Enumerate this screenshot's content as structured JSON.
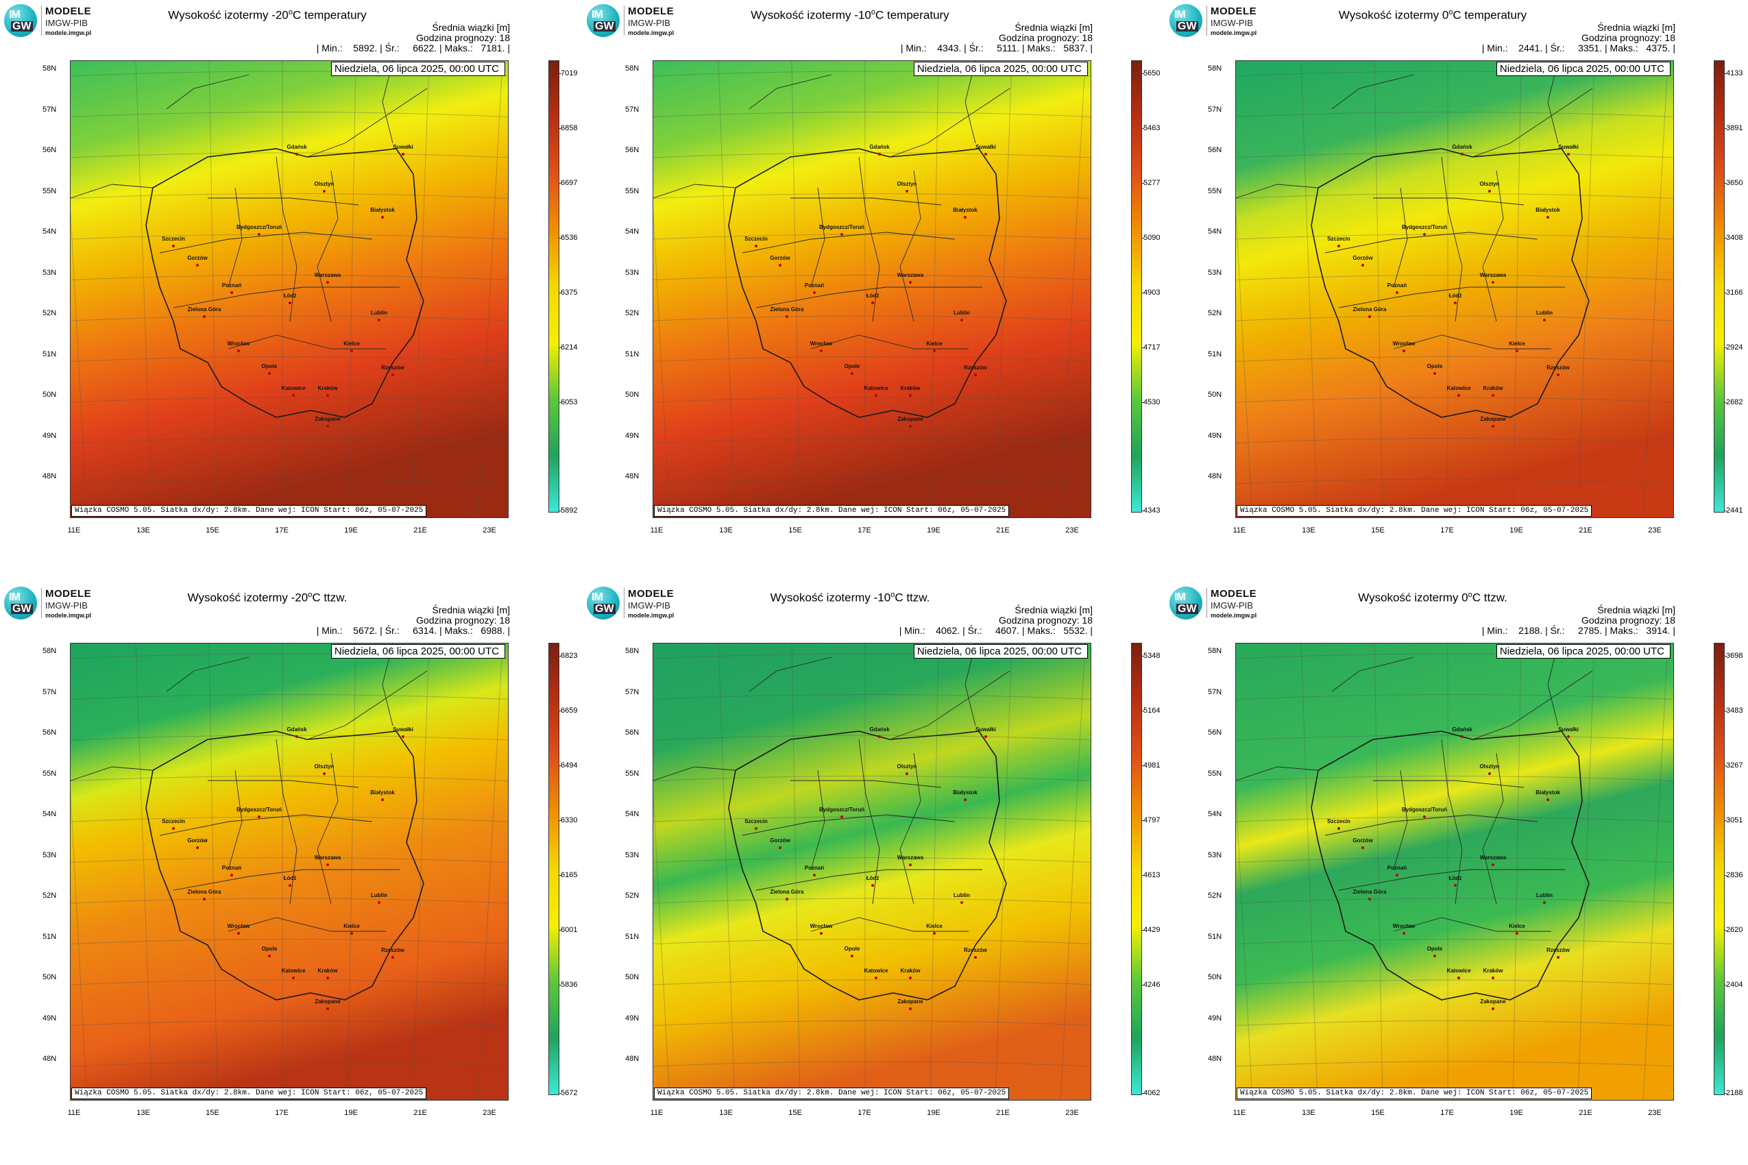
{
  "logo": {
    "badge_top": "IM",
    "badge_bottom": "GW",
    "line1": "MODELE",
    "line2": "IMGW-PIB",
    "line3": "modele.imgw.pl"
  },
  "common": {
    "beam_label": "Średnia wiązki [m]",
    "forecast_hour": "Godzina prognozy: 18",
    "date": "Niedziela, 06 lipca 2025, 00:00 UTC",
    "footer": "Wiązka COSMO 5.05. Siatka dx/dy: 2.8km. Dane wej: ICON Start: 06z, 05-07-2025",
    "lat_labels": [
      "58N",
      "57N",
      "56N",
      "55N",
      "54N",
      "53N",
      "52N",
      "51N",
      "50N",
      "49N",
      "48N"
    ],
    "lon_labels": [
      "11E",
      "13E",
      "15E",
      "17E",
      "19E",
      "21E",
      "23E"
    ]
  },
  "panels": [
    {
      "title_pre": "Wysokość izotermy -20",
      "title_sup": "o",
      "title_post": "C temperatury",
      "stats": "| Min.:    5892. | Śr.:     6622. | Maks.:   7181. |",
      "colorbar": [
        "7019",
        "6858",
        "6697",
        "6536",
        "6375",
        "6214",
        "6053",
        "5892"
      ],
      "pattern": "temp-cold"
    },
    {
      "title_pre": "Wysokość izotermy -10",
      "title_sup": "o",
      "title_post": "C temperatury",
      "stats": "| Min.:    4343. | Śr.:     5111. | Maks.:   5837. |",
      "colorbar": [
        "5650",
        "5463",
        "5277",
        "5090",
        "4903",
        "4717",
        "4530",
        "4343"
      ],
      "pattern": "temp-cold"
    },
    {
      "title_pre": "Wysokość izotermy 0",
      "title_sup": "o",
      "title_post": "C temperatury",
      "stats": "| Min.:    2441. | Śr.:     3351. | Maks.:   4375. |",
      "colorbar": [
        "4133",
        "3891",
        "3650",
        "3408",
        "3166",
        "2924",
        "2682",
        "2441"
      ],
      "pattern": "temp-zero"
    },
    {
      "title_pre": "Wysokość izotermy -20",
      "title_sup": "o",
      "title_post": "C ttzw.",
      "stats": "| Min.:    5672. | Śr.:     6314. | Maks.:   6988. |",
      "colorbar": [
        "6823",
        "6659",
        "6494",
        "6330",
        "6165",
        "6001",
        "5836",
        "5672"
      ],
      "pattern": "wet-cold"
    },
    {
      "title_pre": "Wysokość izotermy -10",
      "title_sup": "o",
      "title_post": "C ttzw.",
      "stats": "| Min.:    4062. | Śr.:     4607. | Maks.:   5532. |",
      "colorbar": [
        "5348",
        "5164",
        "4981",
        "4797",
        "4613",
        "4429",
        "4246",
        "4062"
      ],
      "pattern": "wet-mid"
    },
    {
      "title_pre": "Wysokość izotermy 0",
      "title_sup": "o",
      "title_post": "C ttzw.",
      "stats": "| Min.:    2188. | Śr.:     2785. | Maks.:   3914. |",
      "colorbar": [
        "3698",
        "3483",
        "3267",
        "3051",
        "2836",
        "2620",
        "2404",
        "2188"
      ],
      "pattern": "wet-zero"
    }
  ],
  "cities": [
    "Gdańsk",
    "Suwałki",
    "Olsztyn",
    "Szczecin",
    "Białystok",
    "Bydgoszcz/Toruń",
    "Gorzów",
    "Poznań",
    "Warszawa",
    "Łódź",
    "Zielona Góra",
    "Lublin",
    "Wrocław",
    "Kielce",
    "Opole",
    "Rzeszów",
    "Katowice",
    "Kraków",
    "Zakopane"
  ],
  "colors": {
    "cyan": "#3de8d8",
    "green": "#1fa45c",
    "lightgreen": "#5cc83a",
    "yellow": "#f5f000",
    "orange": "#f0a000",
    "red": "#e03a10",
    "darkred": "#7a2010"
  }
}
